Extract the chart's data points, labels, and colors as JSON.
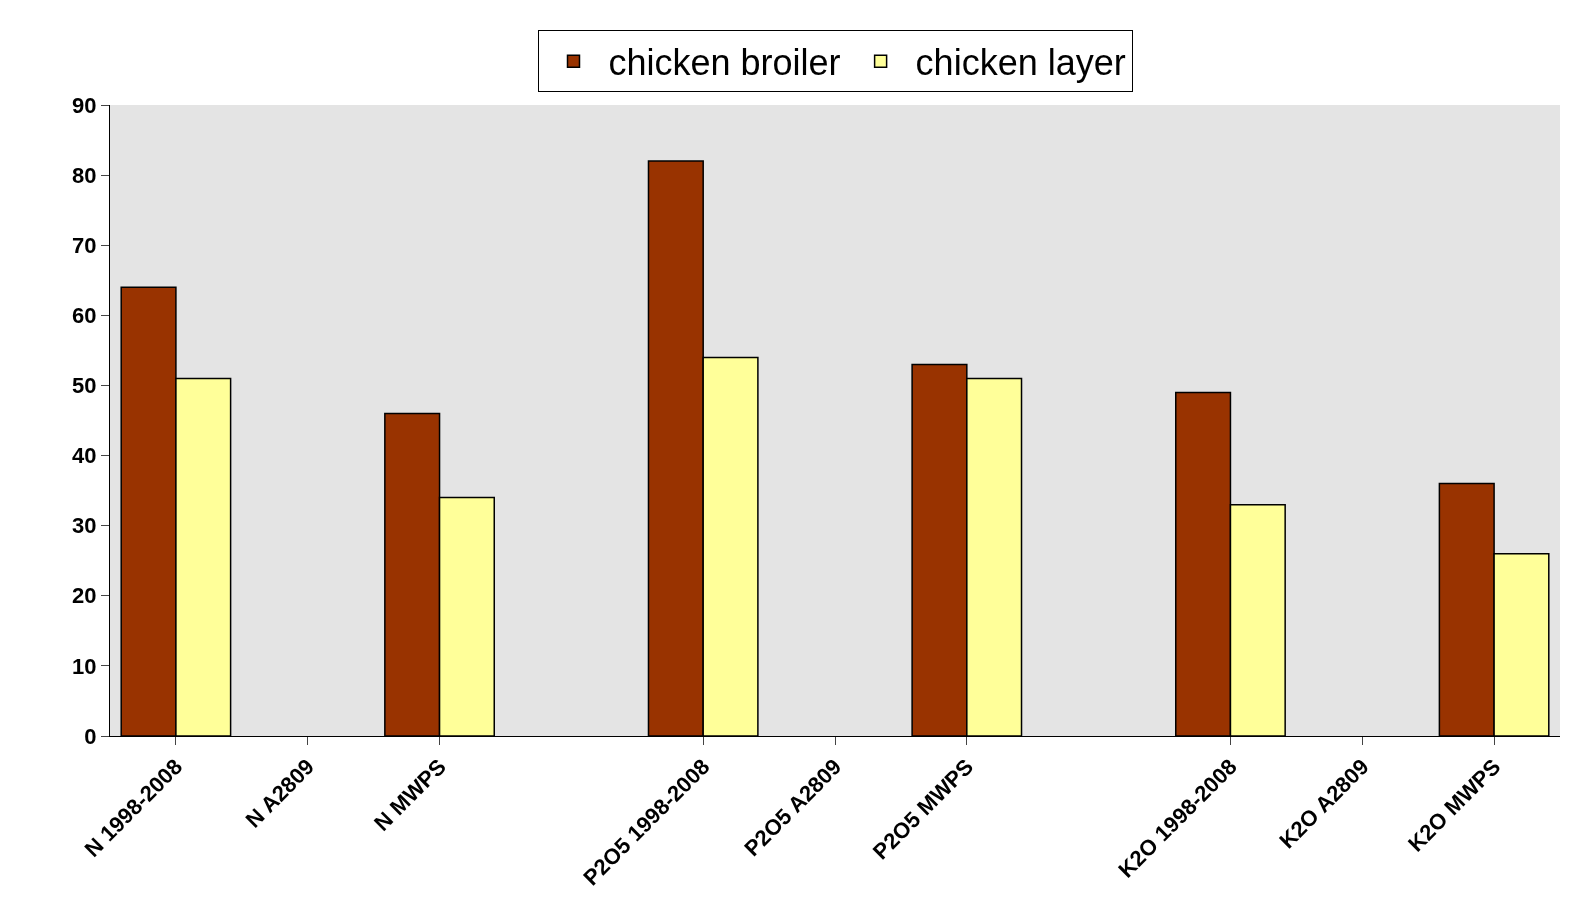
{
  "chart_data": {
    "type": "bar",
    "categories": [
      "N 1998-2008",
      "N A2809",
      "N MWPS",
      null,
      "P2O5 1998-2008",
      "P2O5 A2809",
      "P2O5 MWPS",
      null,
      "K2O 1998-2008",
      "K2O A2809",
      "K2O MWPS"
    ],
    "series": [
      {
        "name": "chicken broiler",
        "color": "#993300",
        "values": [
          64,
          null,
          46,
          null,
          82,
          null,
          53,
          null,
          49,
          null,
          36
        ]
      },
      {
        "name": "chicken layer",
        "color": "#ffff99",
        "values": [
          51,
          null,
          34,
          null,
          54,
          null,
          51,
          null,
          33,
          null,
          26
        ]
      }
    ],
    "ylim": [
      0,
      90
    ],
    "yticks": [
      0,
      10,
      20,
      30,
      40,
      50,
      60,
      70,
      80,
      90
    ],
    "grid": false,
    "legend": "top"
  }
}
